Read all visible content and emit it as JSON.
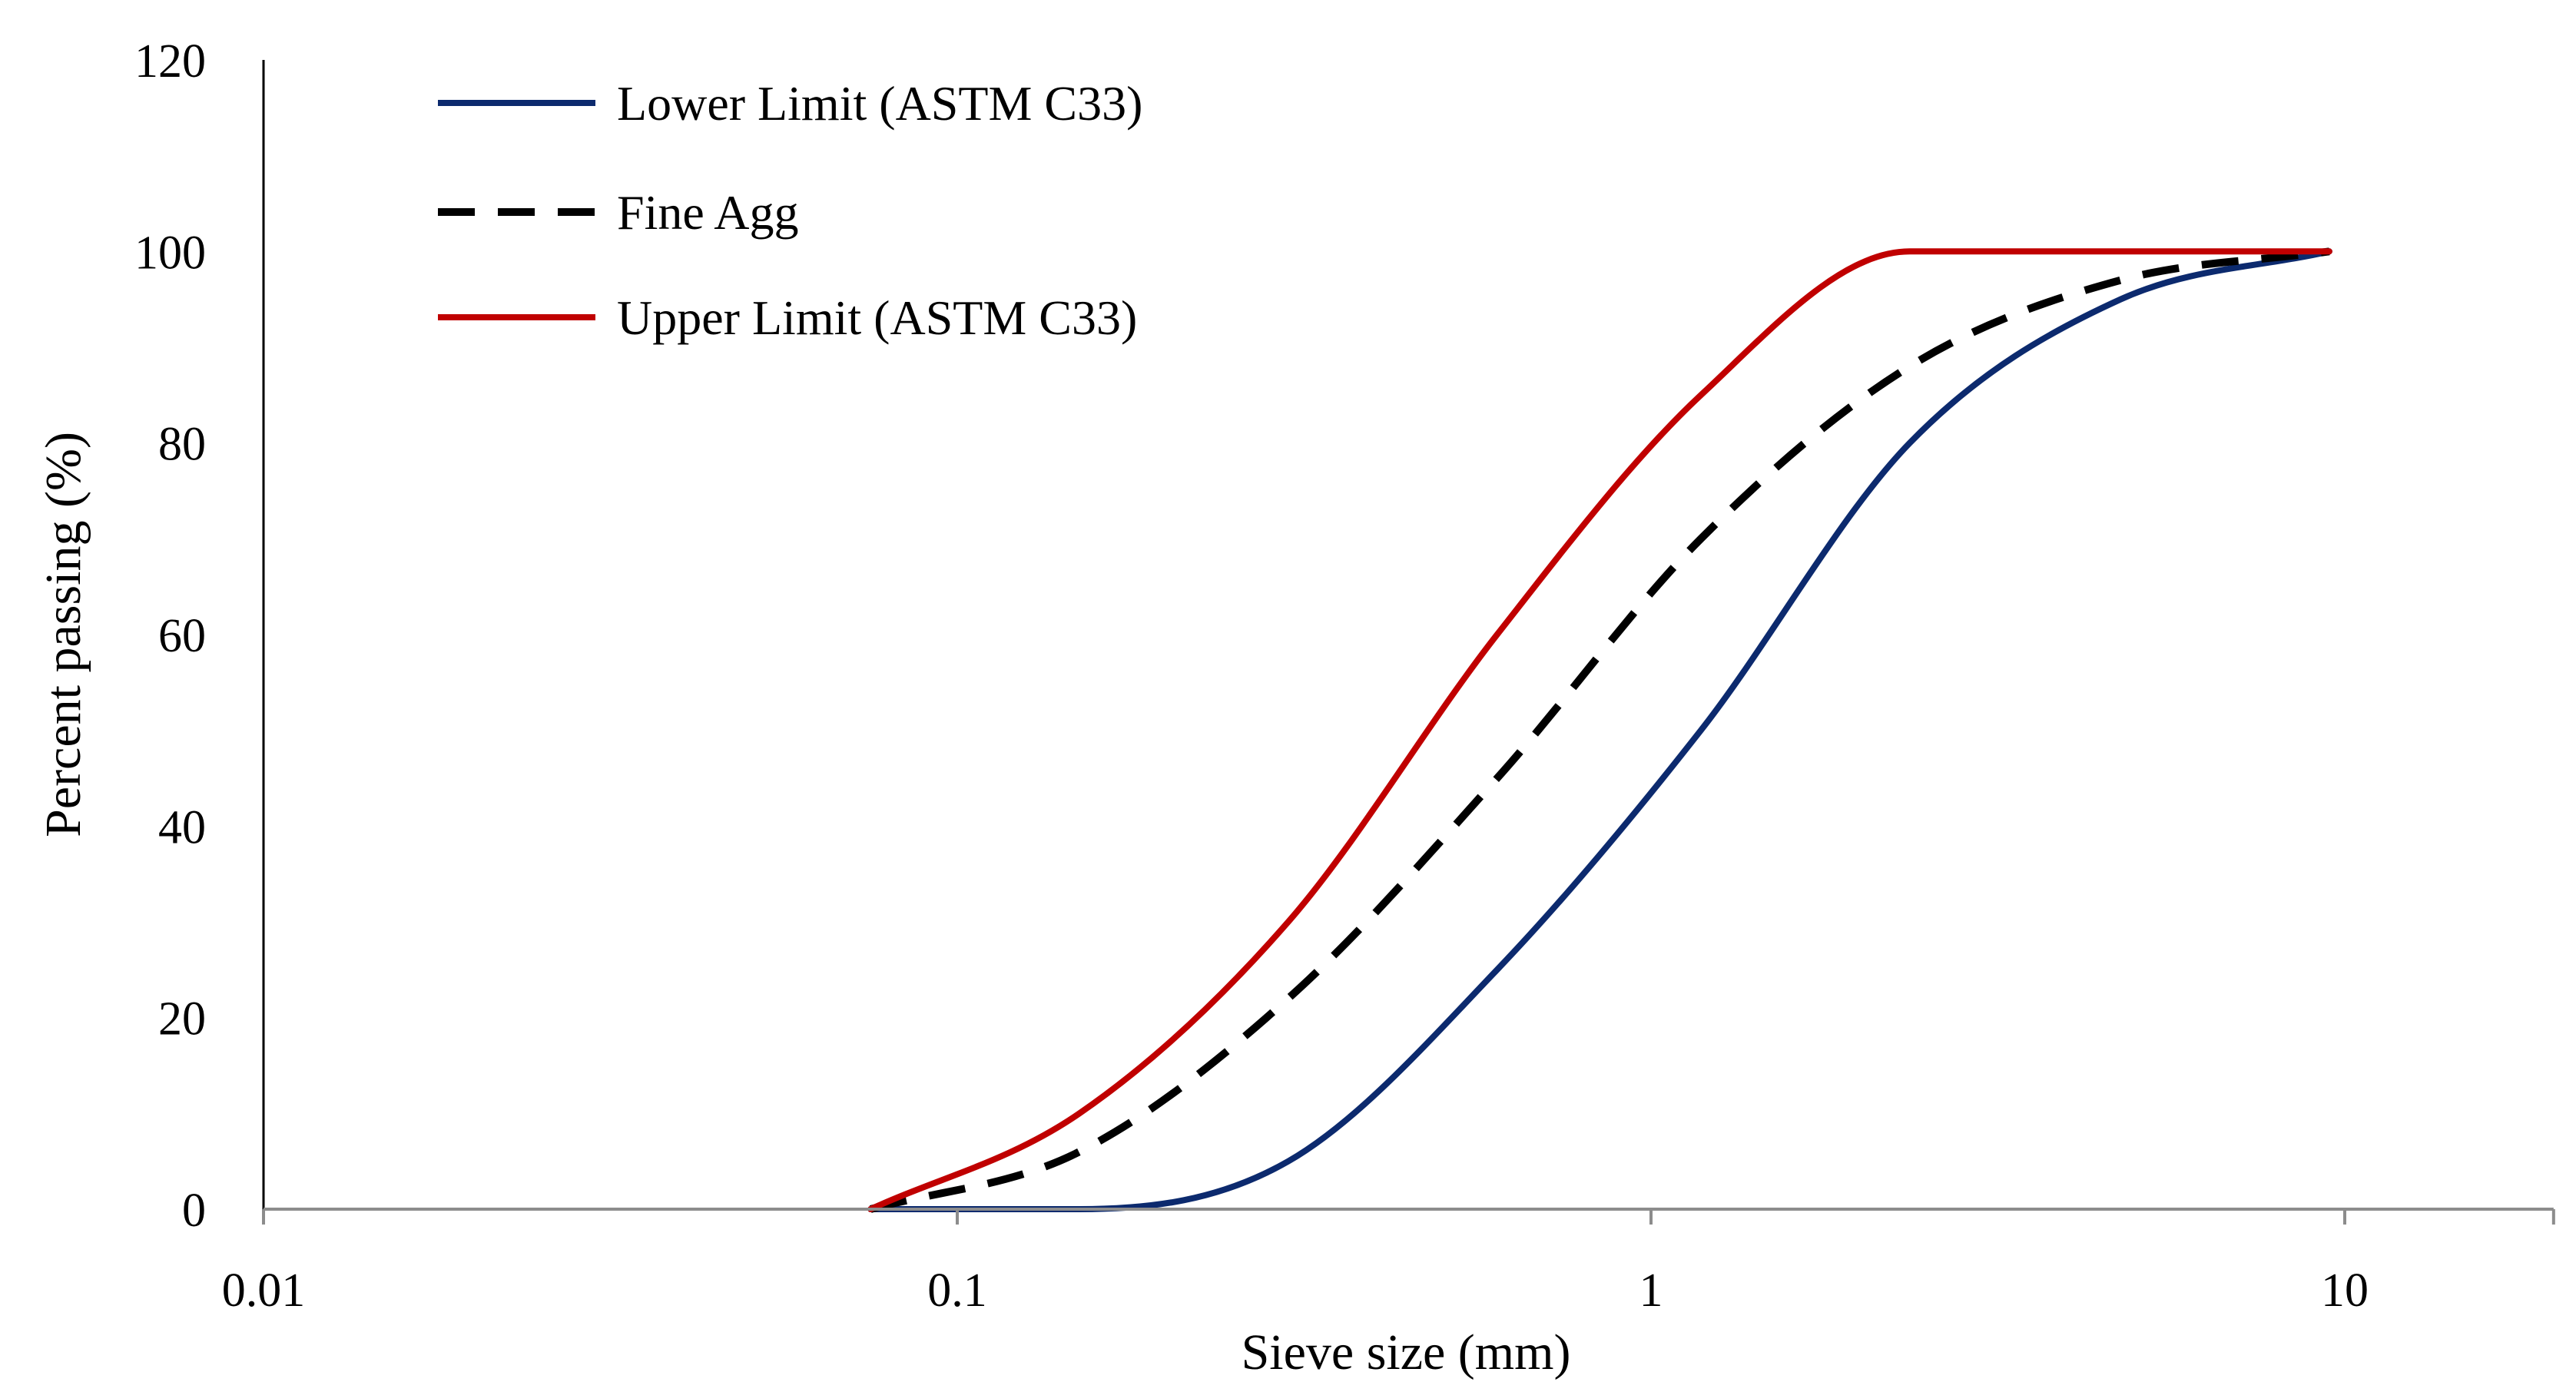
{
  "chart_data": {
    "type": "line",
    "title": "",
    "xlabel": "Sieve size (mm)",
    "ylabel": "Percent passing (%)",
    "xscale": "log",
    "xlim": [
      0.01,
      20
    ],
    "ylim": [
      0,
      120
    ],
    "xticks": [
      0.01,
      0.1,
      1,
      10
    ],
    "xtick_labels": [
      "0.01",
      "0.1",
      "1",
      "10"
    ],
    "yticks": [
      0,
      20,
      40,
      60,
      80,
      100,
      120
    ],
    "ytick_labels": [
      "0",
      "20",
      "40",
      "60",
      "80",
      "100",
      "120"
    ],
    "grid": false,
    "legend_position": "top-left",
    "series": [
      {
        "name": "Lower Limit (ASTM C33)",
        "color": "#0c2a6e",
        "dash": "solid",
        "x": [
          0.075,
          0.15,
          0.3,
          0.6,
          1.18,
          2.36,
          4.75,
          9.5
        ],
        "y": [
          0,
          0,
          5,
          25,
          50,
          80,
          95,
          100
        ]
      },
      {
        "name": "Fine Agg",
        "color": "#000000",
        "dash": "dashed",
        "x": [
          0.075,
          0.15,
          0.3,
          0.6,
          1.18,
          2.36,
          4.75,
          9.5
        ],
        "y": [
          0,
          6,
          22,
          45,
          70,
          88,
          97,
          100
        ]
      },
      {
        "name": "Upper Limit (ASTM C33)",
        "color": "#c00000",
        "dash": "solid",
        "x": [
          0.075,
          0.15,
          0.3,
          0.6,
          1.18,
          2.36,
          4.75,
          9.5
        ],
        "y": [
          0,
          10,
          30,
          60,
          85,
          100,
          100,
          100
        ]
      }
    ]
  }
}
